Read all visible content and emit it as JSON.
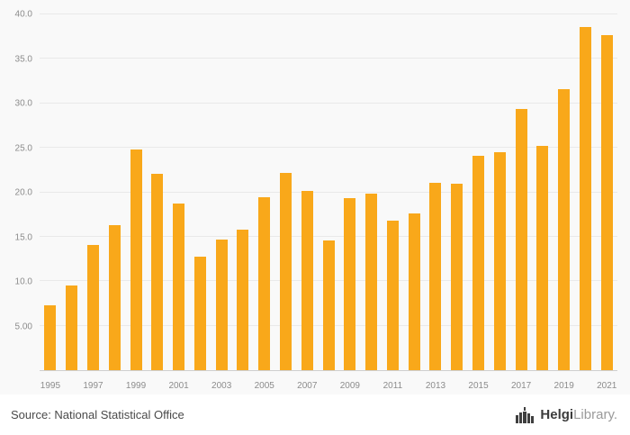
{
  "chart_data": {
    "type": "bar",
    "title": "",
    "xlabel": "",
    "ylabel": "",
    "categories": [
      1995,
      1996,
      1997,
      1998,
      1999,
      2000,
      2001,
      2002,
      2003,
      2004,
      2005,
      2006,
      2007,
      2008,
      2009,
      2010,
      2011,
      2012,
      2013,
      2014,
      2015,
      2016,
      2017,
      2018,
      2019,
      2020,
      2021
    ],
    "values": [
      7.3,
      9.5,
      14.1,
      16.3,
      24.8,
      22.1,
      18.7,
      12.8,
      14.7,
      15.8,
      19.4,
      22.2,
      20.2,
      14.6,
      19.3,
      19.9,
      16.8,
      17.6,
      21.1,
      21.0,
      24.1,
      24.5,
      29.4,
      25.2,
      31.6,
      38.6,
      37.7
    ],
    "ylim": [
      0,
      40
    ],
    "yticks": [
      {
        "value": 5,
        "label": "5.00"
      },
      {
        "value": 10,
        "label": "10.0"
      },
      {
        "value": 15,
        "label": "15.0"
      },
      {
        "value": 20,
        "label": "20.0"
      },
      {
        "value": 25,
        "label": "25.0"
      },
      {
        "value": 30,
        "label": "30.0"
      },
      {
        "value": 35,
        "label": "35.0"
      },
      {
        "value": 40,
        "label": "40.0"
      }
    ],
    "x_label_every": 2,
    "bar_color": "#F9A81A",
    "grid": true,
    "legend_position": "none"
  },
  "footer": {
    "source_text": "Source: National Statistical Office",
    "brand": {
      "name_bold": "Helgi",
      "name_light": "Library."
    }
  }
}
